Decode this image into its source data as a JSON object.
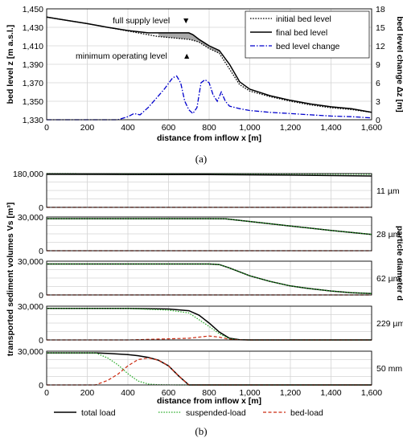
{
  "chart_data": [
    {
      "type": "line",
      "caption": "(a)",
      "xlabel": "distance from inflow x [m]",
      "ylabel": "bed level z [m a.s.l.]",
      "y2label": "bed level change Δz [m]",
      "xlim": [
        0,
        1600
      ],
      "ylim": [
        1330,
        1450
      ],
      "y2lim": [
        0,
        18
      ],
      "xticks": [
        "0",
        "200",
        "400",
        "600",
        "800",
        "1,000",
        "1,200",
        "1,400",
        "1,600"
      ],
      "yticks": [
        "1,330",
        "1,350",
        "1,370",
        "1,390",
        "1,410",
        "1,430",
        "1,450"
      ],
      "y2ticks": [
        "0",
        "3",
        "6",
        "9",
        "12",
        "15",
        "18"
      ],
      "grid": true,
      "legend_position": "top-right",
      "annotations": [
        {
          "text": "full supply level",
          "marker": "▼",
          "x": 650,
          "y": 1441
        },
        {
          "text": "minimum operating level",
          "marker": "▲",
          "x": 700,
          "y": 1415
        }
      ],
      "series": [
        {
          "name": "initial bed level",
          "style": "dotted",
          "color": "#000000",
          "axis": "left",
          "x": [
            0,
            100,
            200,
            300,
            400,
            500,
            550,
            600,
            650,
            700,
            720,
            750,
            800,
            850,
            900,
            950,
            1000,
            1100,
            1200,
            1300,
            1400,
            1500,
            1600
          ],
          "y": [
            1441,
            1437.5,
            1434,
            1430,
            1426,
            1422,
            1420,
            1419,
            1418,
            1417,
            1416,
            1414,
            1407,
            1402,
            1385,
            1368,
            1361,
            1355,
            1350,
            1346,
            1343,
            1341,
            1338
          ]
        },
        {
          "name": "final bed level",
          "style": "solid",
          "color": "#000000",
          "axis": "left",
          "x": [
            0,
            100,
            200,
            300,
            400,
            500,
            550,
            600,
            650,
            700,
            720,
            750,
            800,
            850,
            900,
            950,
            1000,
            1100,
            1200,
            1300,
            1400,
            1500,
            1600
          ],
          "y": [
            1441,
            1437.5,
            1434,
            1430,
            1426.5,
            1424,
            1424,
            1424,
            1424,
            1424,
            1422,
            1417,
            1410,
            1405,
            1390,
            1371,
            1363,
            1356,
            1351,
            1347,
            1344,
            1342,
            1338
          ]
        },
        {
          "name": "bed level change",
          "style": "dashdot",
          "color": "#0000cc",
          "axis": "right",
          "x": [
            0,
            350,
            400,
            430,
            460,
            500,
            540,
            580,
            620,
            640,
            660,
            680,
            700,
            720,
            740,
            760,
            780,
            800,
            820,
            840,
            860,
            880,
            900,
            950,
            1000,
            1100,
            1200,
            1300,
            1400,
            1500,
            1600
          ],
          "y": [
            0,
            0,
            0.5,
            1,
            0.8,
            2,
            3.5,
            5,
            6.8,
            7.1,
            6,
            3,
            1.6,
            1,
            2,
            6,
            6.5,
            6,
            4,
            3,
            4.5,
            3,
            2.2,
            1.8,
            1.5,
            1.2,
            1,
            0.8,
            0.6,
            0.5,
            0.3
          ]
        }
      ]
    },
    {
      "type": "line",
      "caption": "(b)",
      "xlabel": "distance from inflow x [m]",
      "ylabel": "transported sediment volumes Vs [m³]",
      "y2label": "particle diameter d",
      "xlim": [
        0,
        1600
      ],
      "xticks": [
        "0",
        "200",
        "400",
        "600",
        "800",
        "1,000",
        "1,200",
        "1,400",
        "1,600"
      ],
      "grid": true,
      "legend_position": "bottom",
      "legend": [
        "total load",
        "suspended-load",
        "bed-load"
      ],
      "panels": [
        {
          "label": "11 µm",
          "ymax": 180000,
          "ytick": "180,000",
          "x": [
            0,
            400,
            800,
            1200,
            1600
          ],
          "total": [
            176000,
            175500,
            175000,
            172000,
            167000
          ],
          "suspended": [
            180000,
            179500,
            179000,
            178000,
            176000
          ],
          "bed": [
            0,
            0,
            0,
            0,
            0
          ]
        },
        {
          "label": "28 µm",
          "ymax": 30000,
          "ytick": "30,000",
          "x": [
            0,
            400,
            800,
            880,
            1000,
            1200,
            1400,
            1600
          ],
          "total": [
            28500,
            28500,
            28500,
            28400,
            26000,
            22000,
            18000,
            14500
          ],
          "suspended": [
            28500,
            28500,
            28500,
            28400,
            26000,
            22000,
            18000,
            14500
          ],
          "bed": [
            0,
            0,
            0,
            0,
            0,
            0,
            0,
            0
          ]
        },
        {
          "label": "62 µm",
          "ymax": 30000,
          "ytick": "30,000",
          "x": [
            0,
            400,
            800,
            850,
            900,
            1000,
            1100,
            1200,
            1300,
            1400,
            1500,
            1600
          ],
          "total": [
            27500,
            27500,
            27500,
            27000,
            24000,
            17000,
            12000,
            8000,
            5500,
            3500,
            2000,
            1200
          ],
          "suspended": [
            27500,
            27500,
            27500,
            27000,
            24000,
            17000,
            12000,
            8000,
            5500,
            3500,
            2000,
            1200
          ],
          "bed": [
            0,
            0,
            0,
            0,
            0,
            0,
            0,
            0,
            0,
            0,
            0,
            0
          ]
        },
        {
          "label": "229 µm",
          "ymax": 30000,
          "ytick": "30,000",
          "x": [
            0,
            400,
            600,
            700,
            750,
            800,
            850,
            900,
            950,
            1000,
            1600
          ],
          "total": [
            28000,
            28000,
            27500,
            26000,
            22000,
            15000,
            7000,
            1500,
            200,
            0,
            0
          ],
          "suspended": [
            28000,
            28000,
            26500,
            24000,
            18000,
            12000,
            5500,
            1000,
            100,
            0,
            0
          ],
          "bed": [
            0,
            0,
            1000,
            1500,
            2500,
            3500,
            2500,
            500,
            100,
            0,
            0
          ]
        },
        {
          "label": "50 mm",
          "ymax": 30000,
          "ytick": "30,000",
          "x": [
            0,
            240,
            300,
            350,
            400,
            450,
            500,
            550,
            600,
            650,
            700,
            750,
            1600
          ],
          "total": [
            28500,
            28500,
            28000,
            27500,
            27000,
            26000,
            24500,
            22000,
            17000,
            8000,
            0,
            0,
            0
          ],
          "suspended": [
            28500,
            28500,
            24000,
            18000,
            10000,
            3500,
            800,
            200,
            50,
            0,
            0,
            0,
            0
          ],
          "bed": [
            0,
            0,
            4000,
            9500,
            17000,
            22500,
            24000,
            22000,
            17000,
            8000,
            0,
            0,
            0
          ]
        }
      ]
    }
  ]
}
